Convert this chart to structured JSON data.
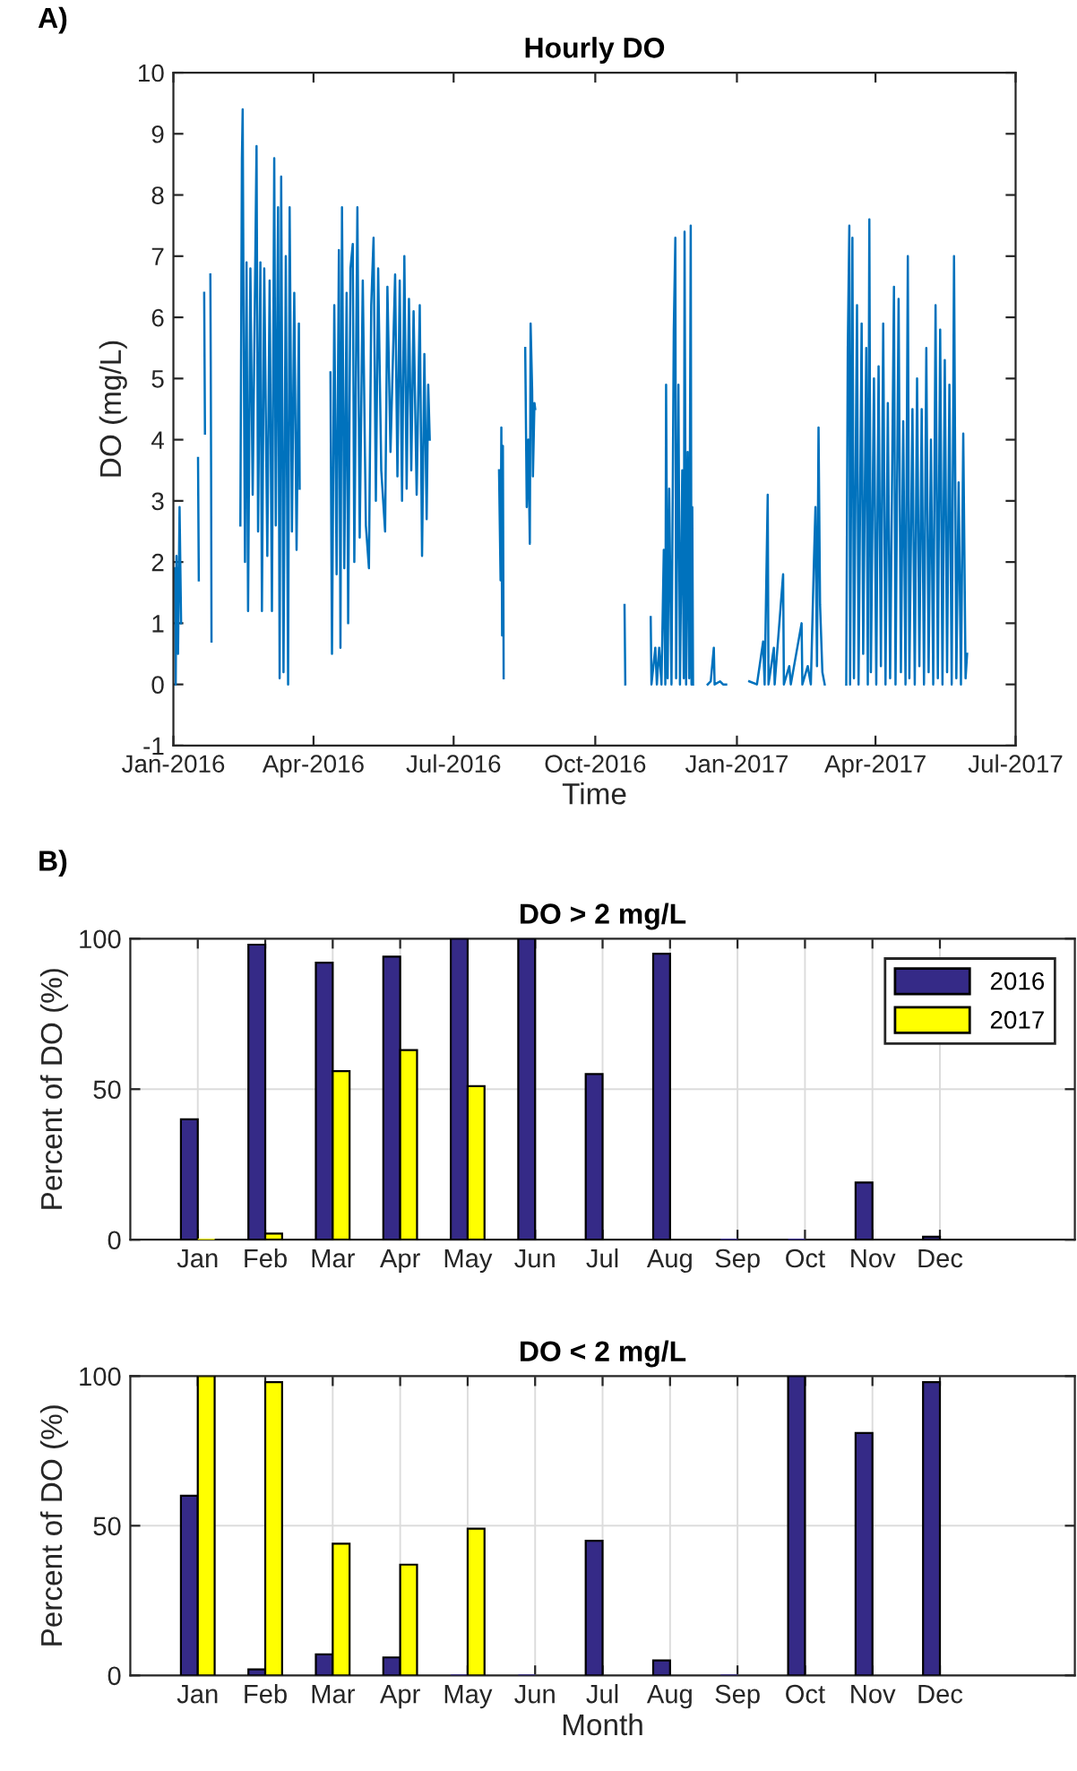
{
  "chart_data": [
    {
      "type": "line",
      "title": "Hourly DO",
      "xlabel": "Time",
      "ylabel": "DO (mg/L)",
      "annotations": [
        "A)"
      ],
      "grid": false,
      "legend": false,
      "marker": "none",
      "line_style": "solid",
      "xlim": [
        "2016-01",
        "2017-07"
      ],
      "ylim": [
        -1,
        10
      ],
      "xticks": [
        {
          "value": "2016-01",
          "label": "Jan-2016"
        },
        {
          "value": "2016-04",
          "label": "Apr-2016"
        },
        {
          "value": "2016-07",
          "label": "Jul-2016"
        },
        {
          "value": "2016-10",
          "label": "Oct-2016"
        },
        {
          "value": "2017-01",
          "label": "Jan-2017"
        },
        {
          "value": "2017-04",
          "label": "Apr-2017"
        },
        {
          "value": "2017-07",
          "label": "Jul-2017"
        }
      ],
      "yticks": [
        -1,
        0,
        1,
        2,
        3,
        4,
        5,
        6,
        7,
        8,
        9,
        10
      ],
      "series": [
        {
          "color": "#0072bd",
          "x": [
            "2016-01-02T00:00",
            "2016-01-02T12:00",
            "2016-01-03T00:00",
            "2016-01-04T00:00",
            "2016-01-05T00:00",
            "2016-01-06T00:00",
            "2016-01-10T00:00",
            "2016-01-17T00:00",
            "2016-01-17T12:00",
            "2016-01-19T00:00",
            "2016-01-21T00:00",
            "2016-01-21T12:00",
            "2016-01-23T00:00",
            "2016-01-25T00:00",
            "2016-01-25T06:00",
            "2016-01-25T12:00",
            "2016-01-25T18:00",
            "2016-02-05T00:00",
            "2016-02-13T12:00",
            "2016-02-14T12:00",
            "2016-02-15T00:00",
            "2016-02-15T12:00",
            "2016-02-16T12:00",
            "2016-02-17T12:00",
            "2016-02-18T12:00",
            "2016-02-20T00:00",
            "2016-02-21T12:00",
            "2016-02-23T00:00",
            "2016-02-24T00:00",
            "2016-02-25T00:00",
            "2016-02-26T12:00",
            "2016-02-27T12:00",
            "2016-02-29T00:00",
            "2016-03-02T00:00",
            "2016-03-03T12:00",
            "2016-03-05T00:00",
            "2016-03-06T12:00",
            "2016-03-07T12:00",
            "2016-03-09T00:00",
            "2016-03-10T00:00",
            "2016-03-11T00:00",
            "2016-03-12T12:00",
            "2016-03-14T00:00",
            "2016-03-15T12:00",
            "2016-03-16T12:00",
            "2016-03-18T00:00",
            "2016-03-19T12:00",
            "2016-03-21T00:00",
            "2016-03-22T12:00",
            "2016-03-23T00:00",
            "2016-04-02T00:00",
            "2016-04-12T00:00",
            "2016-04-13T00:00",
            "2016-04-14T12:00",
            "2016-04-16T00:00",
            "2016-04-17T12:00",
            "2016-04-18T12:00",
            "2016-04-19T12:00",
            "2016-04-21T00:00",
            "2016-04-22T12:00",
            "2016-04-23T12:00",
            "2016-04-25T00:00",
            "2016-04-26T12:00",
            "2016-04-27T12:00",
            "2016-04-29T12:00",
            "2016-05-01T00:00",
            "2016-05-03T00:00",
            "2016-05-05T00:00",
            "2016-05-07T00:00",
            "2016-05-08T12:00",
            "2016-05-10T00:00",
            "2016-05-11T12:00",
            "2016-05-13T00:00",
            "2016-05-15T00:00",
            "2016-05-17T12:00",
            "2016-05-19T00:00",
            "2016-05-21T00:00",
            "2016-05-24T00:00",
            "2016-05-25T12:00",
            "2016-05-27T00:00",
            "2016-05-28T12:00",
            "2016-05-30T00:00",
            "2016-05-31T12:00",
            "2016-06-02T00:00",
            "2016-06-03T12:00",
            "2016-06-05T00:00",
            "2016-06-07T00:00",
            "2016-06-09T00:00",
            "2016-06-10T12:00",
            "2016-06-12T00:00",
            "2016-06-13T12:00",
            "2016-06-14T12:00",
            "2016-06-15T12:00",
            "2016-07-10T00:00",
            "2016-07-30T12:00",
            "2016-07-31T12:00",
            "2016-08-01T00:00",
            "2016-08-01T12:00",
            "2016-08-02T00:00",
            "2016-08-02T12:00",
            "2016-08-09T00:00",
            "2016-08-16T12:00",
            "2016-08-17T12:00",
            "2016-08-18T12:00",
            "2016-08-19T12:00",
            "2016-08-20T00:00",
            "2016-08-21T00:00",
            "2016-08-21T12:00",
            "2016-08-22T12:00",
            "2016-08-23T00:00",
            "2016-09-20T00:00",
            "2016-10-20T00:00",
            "2016-10-20T12:00",
            "2016-10-28T00:00",
            "2016-11-06T00:00",
            "2016-11-06T12:00",
            "2016-11-09T00:00",
            "2016-11-10T00:00",
            "2016-11-11T12:00",
            "2016-11-13T00:00",
            "2016-11-14T12:00",
            "2016-11-15T12:00",
            "2016-11-16T00:00",
            "2016-11-17T00:00",
            "2016-11-18T00:00",
            "2016-11-19T12:00",
            "2016-11-21T00:00",
            "2016-11-22T00:00",
            "2016-11-22T12:00",
            "2016-11-24T00:00",
            "2016-11-25T00:00",
            "2016-11-26T12:00",
            "2016-11-27T12:00",
            "2016-11-28T00:00",
            "2016-11-29T00:00",
            "2016-11-30T00:00",
            "2016-12-01T00:00",
            "2016-12-02T00:00",
            "2016-12-02T12:00",
            "2016-12-03T00:00",
            "2016-12-03T12:00",
            "2016-12-08T00:00",
            "2016-12-13T00:00",
            "2016-12-15T00:00",
            "2016-12-17T00:00",
            "2016-12-17T12:00",
            "2016-12-21T00:00",
            "2016-12-23T00:00",
            "2016-12-25T00:00",
            "2017-01-05T00:00",
            "2017-01-09T00:00",
            "2017-01-14T00:00",
            "2017-01-18T00:00",
            "2017-01-19T00:00",
            "2017-01-21T00:00",
            "2017-01-21T12:00",
            "2017-01-25T00:00",
            "2017-01-25T12:00",
            "2017-01-31T00:00",
            "2017-01-31T12:00",
            "2017-02-04T00:00",
            "2017-02-05T00:00",
            "2017-02-12T00:00",
            "2017-02-12T12:00",
            "2017-02-16T00:00",
            "2017-02-18T00:00",
            "2017-02-20T00:00",
            "2017-02-21T00:00",
            "2017-02-22T00:00",
            "2017-02-23T00:00",
            "2017-02-24T00:00",
            "2017-02-25T12:00",
            "2017-02-27T00:00",
            "2017-03-06T00:00",
            "2017-03-13T00:00",
            "2017-03-14T00:00",
            "2017-03-15T00:00",
            "2017-03-15T12:00",
            "2017-03-17T00:00",
            "2017-03-18T00:00",
            "2017-03-20T00:00",
            "2017-03-21T00:00",
            "2017-03-23T00:00",
            "2017-03-24T00:00",
            "2017-03-26T00:00",
            "2017-03-27T00:00",
            "2017-03-28T00:00",
            "2017-03-29T00:00",
            "2017-03-31T00:00",
            "2017-04-01T12:00",
            "2017-04-03T00:00",
            "2017-04-04T12:00",
            "2017-04-06T00:00",
            "2017-04-07T12:00",
            "2017-04-09T00:00",
            "2017-04-10T12:00",
            "2017-04-13T00:00",
            "2017-04-14T00:00",
            "2017-04-16T00:00",
            "2017-04-17T12:00",
            "2017-04-19T00:00",
            "2017-04-20T12:00",
            "2017-04-22T00:00",
            "2017-04-23T00:00",
            "2017-04-25T00:00",
            "2017-04-26T12:00",
            "2017-04-28T00:00",
            "2017-04-29T12:00",
            "2017-05-01T00:00",
            "2017-05-02T12:00",
            "2017-05-04T00:00",
            "2017-05-05T12:00",
            "2017-05-07T00:00",
            "2017-05-08T12:00",
            "2017-05-10T00:00",
            "2017-05-11T12:00",
            "2017-05-13T00:00",
            "2017-05-14T12:00",
            "2017-05-16T00:00",
            "2017-05-17T12:00",
            "2017-05-19T00:00",
            "2017-05-20T12:00",
            "2017-05-22T00:00",
            "2017-05-23T12:00",
            "2017-05-25T00:00",
            "2017-05-26T12:00",
            "2017-05-28T00:00",
            "2017-05-29T12:00",
            "2017-05-30T12:00"
          ],
          "values": [
            1.9,
            0.0,
            2.1,
            0.5,
            2.9,
            1.0,
            null,
            3.7,
            1.7,
            null,
            6.4,
            4.1,
            null,
            6.7,
            5.3,
            3.4,
            0.7,
            null,
            2.6,
            8.6,
            9.4,
            6.5,
            2.0,
            6.9,
            1.2,
            6.8,
            3.1,
            6.5,
            8.8,
            2.5,
            6.9,
            1.2,
            6.8,
            2.1,
            6.6,
            1.2,
            8.6,
            2.6,
            7.8,
            0.1,
            8.3,
            0.2,
            7.0,
            0.0,
            7.8,
            2.5,
            6.4,
            2.2,
            5.9,
            3.2,
            null,
            5.1,
            0.5,
            6.2,
            1.8,
            7.1,
            0.6,
            7.8,
            1.9,
            6.4,
            1.0,
            6.8,
            7.2,
            2.0,
            7.8,
            2.4,
            6.6,
            2.6,
            1.9,
            6.2,
            7.3,
            3.0,
            6.8,
            3.5,
            2.5,
            6.5,
            3.8,
            6.7,
            3.4,
            6.6,
            3.0,
            7.0,
            3.2,
            6.3,
            3.5,
            6.1,
            3.1,
            6.2,
            2.1,
            5.4,
            2.7,
            4.9,
            4.0,
            null,
            3.5,
            1.7,
            4.2,
            0.8,
            3.9,
            0.1,
            null,
            5.5,
            2.9,
            4.0,
            2.3,
            5.9,
            4.8,
            3.4,
            4.6,
            4.5,
            null,
            1.3,
            0.0,
            null,
            1.1,
            0.0,
            0.6,
            0.0,
            0.6,
            0.0,
            2.2,
            0.0,
            4.9,
            0.1,
            3.2,
            0.0,
            5.8,
            7.3,
            0.1,
            4.9,
            0.0,
            3.5,
            0.1,
            7.4,
            0.0,
            3.8,
            0.1,
            7.5,
            0.0,
            2.9,
            0.0,
            null,
            0.0,
            0.05,
            0.6,
            0.0,
            0.05,
            0.0,
            0.0,
            null,
            0.05,
            0.0,
            0.7,
            0.0,
            3.1,
            0.0,
            0.6,
            0.0,
            1.8,
            0.0,
            0.3,
            0.0,
            1.0,
            0.0,
            0.3,
            0.0,
            2.0,
            2.9,
            0.3,
            4.2,
            1.3,
            0.2,
            0.0,
            null,
            0.0,
            5.5,
            7.5,
            0.0,
            7.3,
            0.1,
            6.2,
            0.0,
            5.9,
            0.5,
            5.5,
            0.0,
            7.6,
            0.2,
            5.0,
            0.0,
            5.2,
            0.3,
            5.9,
            0.0,
            4.6,
            0.1,
            6.5,
            0.0,
            6.3,
            0.2,
            4.3,
            0.0,
            7.0,
            0.1,
            4.5,
            0.0,
            5.0,
            0.3,
            4.5,
            0.0,
            5.5,
            0.2,
            4.0,
            0.0,
            6.2,
            0.1,
            5.8,
            0.0,
            5.3,
            0.2,
            4.9,
            0.0,
            7.0,
            0.1,
            3.3,
            0.0,
            4.1,
            0.1,
            0.5
          ]
        }
      ]
    },
    {
      "type": "bar",
      "title": "DO > 2 mg/L",
      "ylabel": "Percent of DO (%)",
      "annotations": [
        "B)"
      ],
      "grid": true,
      "legend": "top right",
      "categories": [
        "Jan",
        "Feb",
        "Mar",
        "Apr",
        "May",
        "Jun",
        "Jul",
        "Aug",
        "Sep",
        "Oct",
        "Nov",
        "Dec"
      ],
      "ylim": [
        0,
        100
      ],
      "yticks": [
        0,
        50,
        100
      ],
      "series": [
        {
          "name": "2016",
          "color": "#352a87",
          "values": [
            40,
            98,
            92,
            94,
            100,
            100,
            55,
            95,
            0,
            0,
            19,
            1
          ]
        },
        {
          "name": "2017",
          "color": "#ffff00",
          "values": [
            0,
            2,
            56,
            63,
            51,
            null,
            null,
            null,
            null,
            null,
            null,
            null
          ]
        }
      ]
    },
    {
      "type": "bar",
      "title": "DO < 2 mg/L",
      "xlabel": "Month",
      "ylabel": "Percent of DO (%)",
      "grid": true,
      "categories": [
        "Jan",
        "Feb",
        "Mar",
        "Apr",
        "May",
        "Jun",
        "Jul",
        "Aug",
        "Sep",
        "Oct",
        "Nov",
        "Dec"
      ],
      "ylim": [
        0,
        100
      ],
      "yticks": [
        0,
        50,
        100
      ],
      "series": [
        {
          "color": "#352a87",
          "values": [
            60,
            2,
            7,
            6,
            0,
            0,
            45,
            5,
            0,
            100,
            81,
            98
          ]
        },
        {
          "color": "#ffff00",
          "values": [
            100,
            98,
            44,
            37,
            49,
            null,
            null,
            null,
            null,
            null,
            null,
            null
          ]
        }
      ]
    }
  ]
}
